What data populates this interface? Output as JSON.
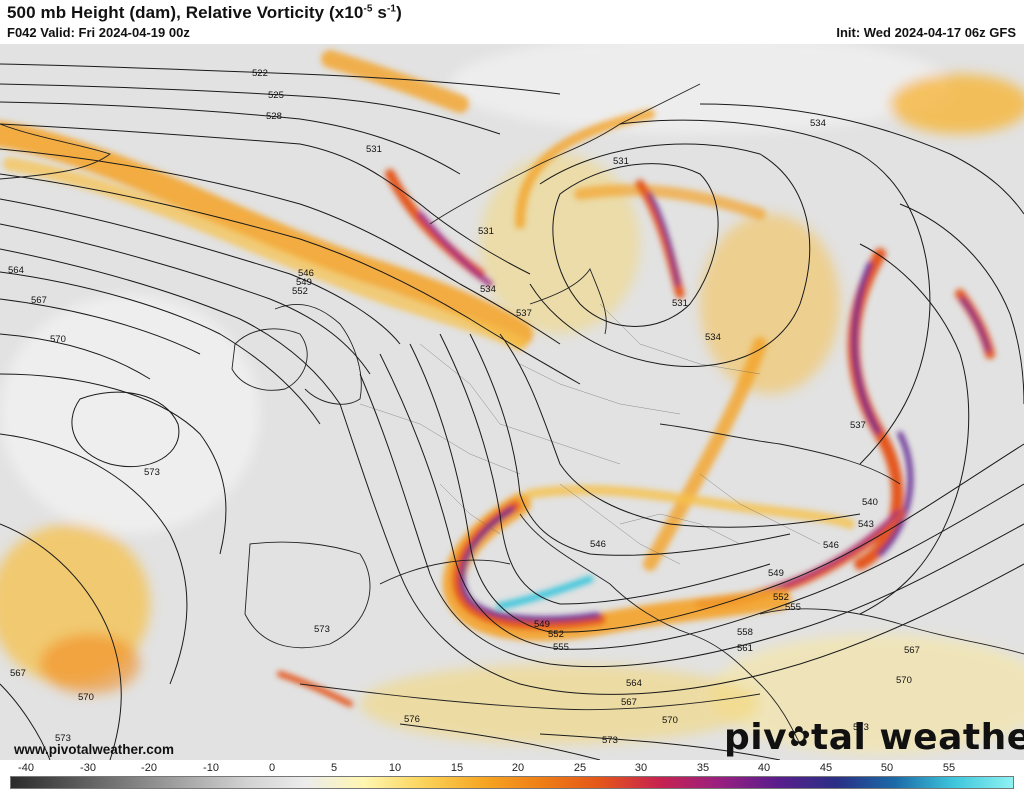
{
  "header": {
    "title": "500 mb Height (dam), Relative Vorticity (x10",
    "title_unit_exp": "-5",
    "title_unit_rest": " s",
    "title_unit_exp2": "-1",
    "title_close": ")",
    "valid": "F042 Valid: Fri 2024-04-19 00z",
    "init": "Init: Wed 2024-04-17 06z GFS"
  },
  "footer": {
    "url": "www.pivotalweather.com",
    "logo_left": "piv",
    "logo_gear": "✿",
    "logo_right": "tal weather"
  },
  "colorbar": {
    "ticks": [
      "-40",
      "-30",
      "-20",
      "-10",
      "0",
      "5",
      "10",
      "15",
      "20",
      "25",
      "30",
      "35",
      "40",
      "45",
      "50",
      "55"
    ],
    "colors": [
      "#2b2b2b",
      "#555555",
      "#7e7e7e",
      "#a8a8a8",
      "#d2d2d2",
      "#ececec",
      "#fff6b0",
      "#fbd35a",
      "#f6a623",
      "#ef7e16",
      "#e4561a",
      "#c7234f",
      "#9a1f80",
      "#5a1e8c",
      "#2a2f86",
      "#1b6aa8",
      "#3ec6dc",
      "#8ff2f2"
    ]
  },
  "contours": [
    {
      "label": "522"
    },
    {
      "label": "525"
    },
    {
      "label": "528"
    },
    {
      "label": "531"
    },
    {
      "label": "531"
    },
    {
      "label": "531"
    },
    {
      "label": "531"
    },
    {
      "label": "534"
    },
    {
      "label": "534"
    },
    {
      "label": "534"
    },
    {
      "label": "537"
    },
    {
      "label": "537"
    },
    {
      "label": "540"
    },
    {
      "label": "543"
    },
    {
      "label": "546"
    },
    {
      "label": "546"
    },
    {
      "label": "546"
    },
    {
      "label": "549"
    },
    {
      "label": "549"
    },
    {
      "label": "549"
    },
    {
      "label": "552"
    },
    {
      "label": "552"
    },
    {
      "label": "552"
    },
    {
      "label": "555"
    },
    {
      "label": "555"
    },
    {
      "label": "558"
    },
    {
      "label": "561"
    },
    {
      "label": "564"
    },
    {
      "label": "564"
    },
    {
      "label": "567"
    },
    {
      "label": "567"
    },
    {
      "label": "567"
    },
    {
      "label": "567"
    },
    {
      "label": "570"
    },
    {
      "label": "570"
    },
    {
      "label": "570"
    },
    {
      "label": "570"
    },
    {
      "label": "573"
    },
    {
      "label": "573"
    },
    {
      "label": "573"
    },
    {
      "label": "573"
    },
    {
      "label": "573"
    },
    {
      "label": "576"
    }
  ]
}
